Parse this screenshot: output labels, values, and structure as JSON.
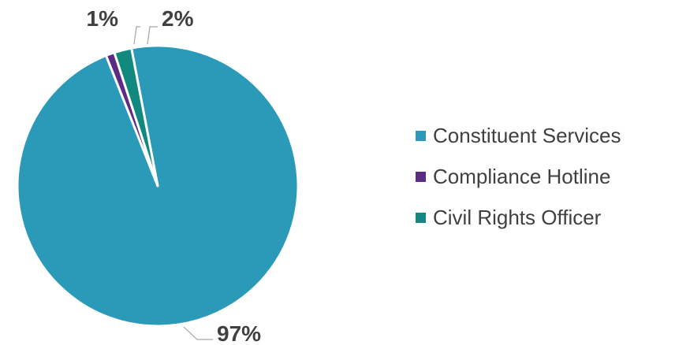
{
  "chart_data": {
    "type": "pie",
    "title": "",
    "slices": [
      {
        "name": "Constituent Services",
        "value": 97,
        "label": "97%",
        "color": "#2A9AB8"
      },
      {
        "name": "Compliance Hotline",
        "value": 1,
        "label": "1%",
        "color": "#5B2C83"
      },
      {
        "name": "Civil Rights Officer",
        "value": 2,
        "label": "2%",
        "color": "#12897F"
      }
    ],
    "legend_position": "right"
  },
  "legend": {
    "items": [
      {
        "label": "Constituent Services",
        "color": "#2A9AB8"
      },
      {
        "label": "Compliance Hotline",
        "color": "#5B2C83"
      },
      {
        "label": "Civil Rights Officer",
        "color": "#12897F"
      }
    ]
  }
}
